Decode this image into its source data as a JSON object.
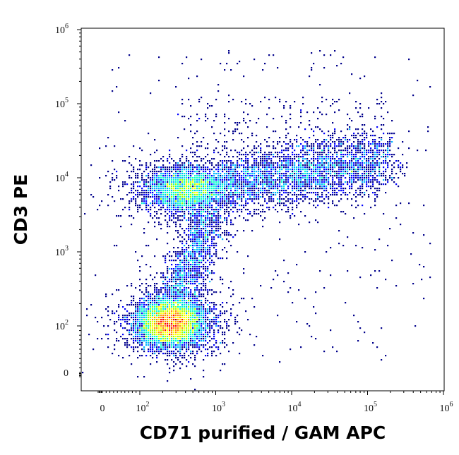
{
  "chart_data": {
    "type": "scatter",
    "subtype": "flow-cytometry-density-dot-plot",
    "title": "",
    "xlabel": "CD71 purified / GAM APC",
    "ylabel": "CD3 PE",
    "x_scale": "biexponential (log with linear region around 0)",
    "y_scale": "biexponential (log with linear region around 0)",
    "xlim": [
      -50,
      1000000
    ],
    "ylim": [
      -50,
      1000000
    ],
    "x_ticks": [
      {
        "base": "0",
        "exp": ""
      },
      {
        "base": "10",
        "exp": "2"
      },
      {
        "base": "10",
        "exp": "3"
      },
      {
        "base": "10",
        "exp": "4"
      },
      {
        "base": "10",
        "exp": "5"
      },
      {
        "base": "10",
        "exp": "6"
      }
    ],
    "y_ticks": [
      {
        "base": "0",
        "exp": ""
      },
      {
        "base": "10",
        "exp": "2"
      },
      {
        "base": "10",
        "exp": "3"
      },
      {
        "base": "10",
        "exp": "4"
      },
      {
        "base": "10",
        "exp": "5"
      },
      {
        "base": "10",
        "exp": "6"
      }
    ],
    "colormap": [
      "#00008b",
      "#0000ff",
      "#00b4ff",
      "#00ffc8",
      "#a0ff00",
      "#ffff00",
      "#ff8c00",
      "#ff0000",
      "#b40000"
    ],
    "grid": false,
    "legend": "none",
    "populations": [
      {
        "center_x": 250,
        "center_y": 110,
        "peak_density": "high"
      },
      {
        "center_x": 400,
        "center_y": 7000,
        "peak_density": "medium"
      },
      {
        "center_x": 8000,
        "center_y": 10000,
        "peak_density": "low"
      }
    ]
  }
}
